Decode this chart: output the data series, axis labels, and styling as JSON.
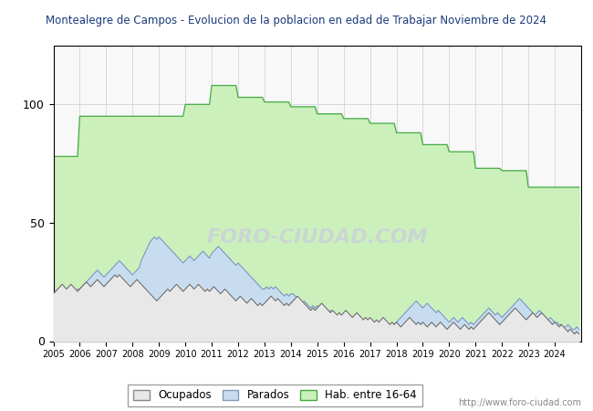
{
  "title": "Montealegre de Campos - Evolucion de la poblacion en edad de Trabajar Noviembre de 2024",
  "legend_labels": [
    "Ocupados",
    "Parados",
    "Hab. entre 16-64"
  ],
  "ylim": [
    0,
    125
  ],
  "yticks": [
    0,
    50,
    100
  ],
  "xtick_years": [
    2005,
    2006,
    2007,
    2008,
    2009,
    2010,
    2011,
    2012,
    2013,
    2014,
    2015,
    2016,
    2017,
    2018,
    2019,
    2020,
    2021,
    2022,
    2023,
    2024
  ],
  "hab_16_64_annual": [
    78,
    95,
    95,
    95,
    95,
    100,
    108,
    103,
    101,
    99,
    96,
    94,
    92,
    88,
    83,
    80,
    73,
    72,
    65,
    65
  ],
  "parados_monthly": [
    20,
    21,
    22,
    22,
    21,
    20,
    21,
    22,
    23,
    22,
    21,
    22,
    22,
    23,
    24,
    25,
    26,
    27,
    28,
    29,
    30,
    29,
    28,
    27,
    28,
    29,
    30,
    31,
    32,
    33,
    34,
    33,
    32,
    31,
    30,
    29,
    28,
    29,
    30,
    31,
    34,
    36,
    38,
    40,
    42,
    43,
    44,
    43,
    44,
    43,
    42,
    41,
    40,
    39,
    38,
    37,
    36,
    35,
    34,
    33,
    34,
    35,
    36,
    35,
    34,
    35,
    36,
    37,
    38,
    37,
    36,
    35,
    37,
    38,
    39,
    40,
    39,
    38,
    37,
    36,
    35,
    34,
    33,
    32,
    33,
    32,
    31,
    30,
    29,
    28,
    27,
    26,
    25,
    24,
    23,
    22,
    22,
    23,
    22,
    23,
    22,
    23,
    22,
    21,
    20,
    19,
    20,
    19,
    20,
    20,
    19,
    18,
    17,
    16,
    17,
    16,
    15,
    14,
    15,
    14,
    15,
    14,
    15,
    14,
    13,
    12,
    13,
    12,
    11,
    10,
    11,
    10,
    10,
    10,
    10,
    9,
    9,
    9,
    9,
    9,
    9,
    8,
    8,
    8,
    8,
    8,
    8,
    8,
    8,
    8,
    8,
    7,
    7,
    7,
    7,
    7,
    8,
    9,
    10,
    11,
    12,
    13,
    14,
    15,
    16,
    17,
    16,
    15,
    14,
    15,
    16,
    15,
    14,
    13,
    12,
    13,
    12,
    11,
    10,
    9,
    8,
    9,
    10,
    9,
    8,
    9,
    10,
    9,
    8,
    7,
    8,
    7,
    8,
    9,
    10,
    11,
    12,
    13,
    14,
    13,
    12,
    11,
    12,
    11,
    10,
    11,
    12,
    13,
    14,
    15,
    16,
    17,
    18,
    17,
    16,
    15,
    14,
    13,
    12,
    11,
    12,
    13,
    12,
    11,
    10,
    9,
    10,
    9,
    8,
    8,
    7,
    7,
    6,
    6,
    7,
    6,
    5,
    5,
    6,
    5
  ],
  "ocupados_monthly": [
    20,
    21,
    22,
    23,
    24,
    23,
    22,
    23,
    24,
    23,
    22,
    21,
    22,
    23,
    24,
    25,
    24,
    23,
    24,
    25,
    26,
    25,
    24,
    23,
    24,
    25,
    26,
    27,
    28,
    27,
    28,
    27,
    26,
    25,
    24,
    23,
    24,
    25,
    26,
    25,
    24,
    23,
    22,
    21,
    20,
    19,
    18,
    17,
    18,
    19,
    20,
    21,
    22,
    21,
    22,
    23,
    24,
    23,
    22,
    21,
    22,
    23,
    24,
    23,
    22,
    23,
    24,
    23,
    22,
    21,
    22,
    21,
    22,
    23,
    22,
    21,
    20,
    21,
    22,
    21,
    20,
    19,
    18,
    17,
    18,
    19,
    18,
    17,
    16,
    17,
    18,
    17,
    16,
    15,
    16,
    15,
    16,
    17,
    18,
    19,
    18,
    17,
    18,
    17,
    16,
    15,
    16,
    15,
    16,
    17,
    18,
    19,
    18,
    17,
    16,
    15,
    14,
    13,
    14,
    13,
    14,
    15,
    16,
    15,
    14,
    13,
    12,
    13,
    12,
    11,
    12,
    11,
    12,
    13,
    12,
    11,
    10,
    11,
    12,
    11,
    10,
    9,
    10,
    9,
    10,
    9,
    8,
    9,
    8,
    9,
    10,
    9,
    8,
    7,
    8,
    7,
    8,
    7,
    6,
    7,
    8,
    9,
    10,
    9,
    8,
    7,
    8,
    7,
    8,
    7,
    6,
    7,
    8,
    7,
    6,
    7,
    8,
    7,
    6,
    5,
    6,
    7,
    8,
    7,
    6,
    5,
    6,
    7,
    6,
    5,
    6,
    5,
    6,
    7,
    8,
    9,
    10,
    11,
    12,
    11,
    10,
    9,
    8,
    7,
    8,
    9,
    10,
    11,
    12,
    13,
    14,
    13,
    12,
    11,
    10,
    9,
    10,
    11,
    12,
    11,
    10,
    11,
    12,
    11,
    10,
    9,
    8,
    7,
    8,
    7,
    6,
    7,
    6,
    5,
    4,
    5,
    4,
    3,
    4,
    3
  ],
  "colors": {
    "hab_16_64_fill": "#ccf0bb",
    "hab_16_64_line": "#44aa44",
    "parados_fill": "#c8dcf0",
    "parados_line": "#7090b8",
    "ocupados_fill": "#e8e8e8",
    "ocupados_line": "#606060",
    "title_text": "#1a3a7a",
    "bg": "#ffffff",
    "plot_bg": "#f8f8f8",
    "grid": "#cccccc",
    "watermark": "#c8cce0"
  },
  "watermark": "FORO-CIUDAD.COM",
  "url": "http://www.foro-ciudad.com"
}
